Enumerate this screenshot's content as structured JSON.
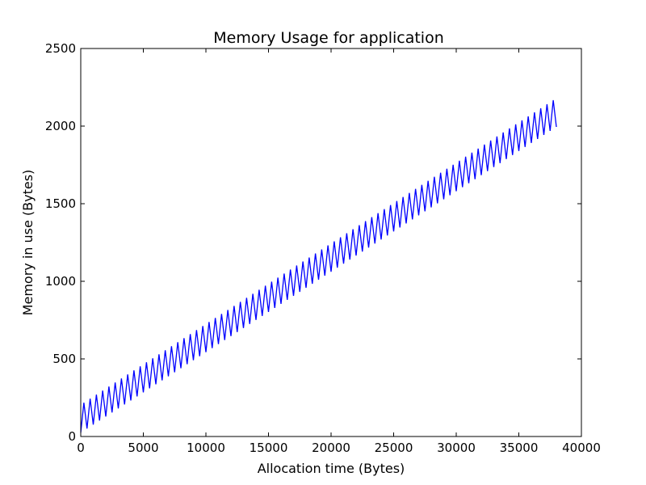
{
  "chart_data": {
    "type": "line",
    "title": "Memory Usage for application",
    "xlabel": "Allocation time (Bytes)",
    "ylabel": "Memory in use (Bytes)",
    "xlim": [
      0,
      40000
    ],
    "ylim": [
      0,
      2500
    ],
    "xticks": [
      0,
      5000,
      10000,
      15000,
      20000,
      25000,
      30000,
      35000,
      40000
    ],
    "yticks": [
      0,
      500,
      1000,
      1500,
      2000,
      2500
    ],
    "grid": false,
    "legend": "none",
    "series": [
      {
        "color": "#0000ff",
        "x": [
          0,
          38000
        ],
        "low": [
          25,
          1995
        ],
        "high": [
          205,
          2180
        ],
        "oscillation_period": 500,
        "end_value": 2000
      }
    ]
  }
}
